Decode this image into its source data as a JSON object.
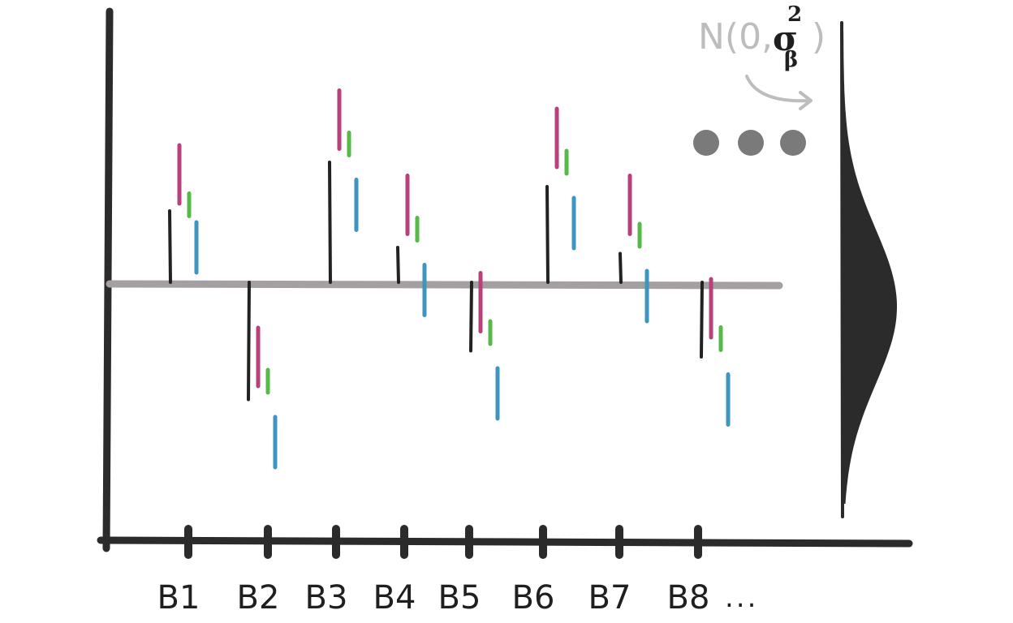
{
  "diagram": {
    "colors": {
      "axis": "#2b2b2b",
      "baseline": "#a49fa2",
      "effect_line": "#222222",
      "sample_1": "#b8417c",
      "sample_2": "#56b94a",
      "sample_3": "#3d95c0",
      "dots": "#7a7a7a",
      "prior_text": "#bdbdbd",
      "prior_fill": "#2b2b2b"
    },
    "x_tick_labels": [
      "B1",
      "B2",
      "B3",
      "B4",
      "B5",
      "B6",
      "B7",
      "B8"
    ],
    "x_ellipsis": "...",
    "coefficients": [
      {
        "label": "B1",
        "effect": 0.6,
        "samples": [
          0.9,
          0.65,
          0.3
        ]
      },
      {
        "label": "B2",
        "effect": -0.95,
        "samples": [
          -0.6,
          -0.8,
          -1.3
        ]
      },
      {
        "label": "B3",
        "effect": 1.0,
        "samples": [
          1.35,
          1.15,
          0.65
        ]
      },
      {
        "label": "B4",
        "effect": 0.3,
        "samples": [
          0.65,
          0.45,
          -0.05
        ]
      },
      {
        "label": "B5",
        "effect": -0.55,
        "samples": [
          -0.15,
          -0.4,
          -0.9
        ]
      },
      {
        "label": "B6",
        "effect": 0.8,
        "samples": [
          1.2,
          1.0,
          0.5
        ]
      },
      {
        "label": "B7",
        "effect": 0.25,
        "samples": [
          0.65,
          0.4,
          -0.1
        ]
      },
      {
        "label": "B8",
        "effect": -0.6,
        "samples": [
          -0.2,
          -0.45,
          -0.95
        ]
      }
    ],
    "prior": {
      "text_prefix": "N(0,",
      "sigma": "σ",
      "superscript": "2",
      "subscript": "β",
      "text_suffix": ")"
    },
    "continuation_dots": 3
  }
}
